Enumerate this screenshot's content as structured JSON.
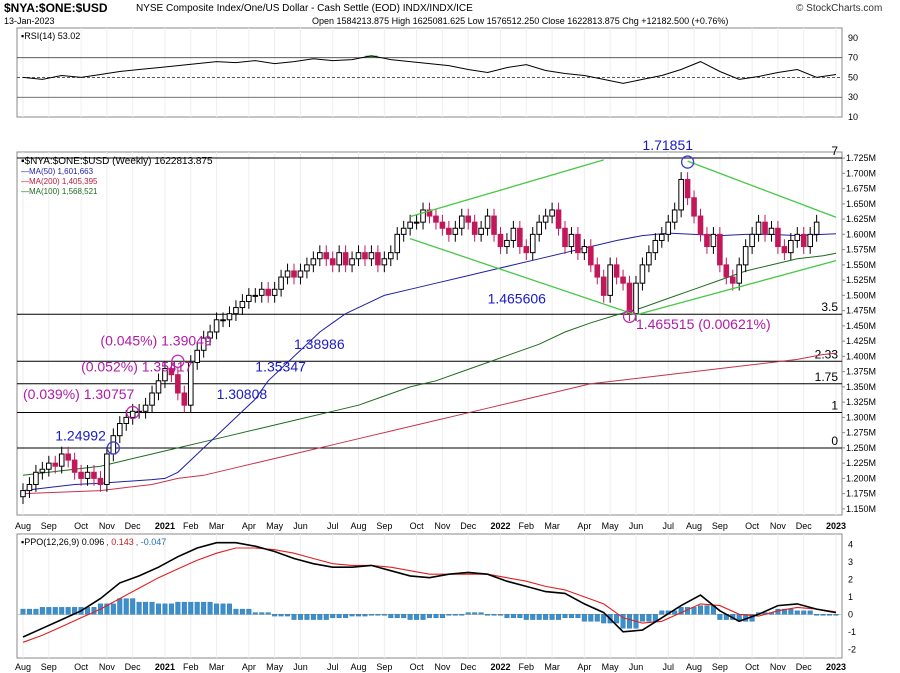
{
  "header": {
    "symbol": "$NYA:$ONE:$USD",
    "description": "NYSE Composite Index/One/US Dollar - Cash Settle (EOD) INDX/INDX/ICE",
    "watermark": "© StockCharts.com",
    "date": "13-Jan-2023",
    "ohlc": "Open 1584213.875  High 1625081.625  Low 1576512.250  Close 1622813.875  Chg +12182.500 (+0.76%)"
  },
  "chart_data": [
    {
      "type": "line",
      "panel": "rsi",
      "legend": "RSI(14) 53.02",
      "ylim": [
        10,
        100
      ],
      "ticks": [
        "90",
        "70",
        "50",
        "30",
        "10"
      ],
      "reference_lines": [
        70,
        50,
        30
      ],
      "x": [
        0,
        3,
        6,
        9,
        12,
        15,
        18,
        21,
        24,
        27,
        30,
        33,
        36,
        39,
        42,
        45,
        48,
        51,
        54,
        57,
        60,
        63,
        66,
        69,
        72,
        75,
        78,
        81,
        84,
        87,
        90,
        93,
        96,
        99,
        102,
        105,
        108,
        111,
        114,
        117,
        120,
        123,
        126
      ],
      "values": [
        50,
        48,
        52,
        50,
        53,
        56,
        58,
        60,
        62,
        64,
        66,
        65,
        67,
        64,
        66,
        69,
        67,
        68,
        72,
        68,
        66,
        64,
        62,
        58,
        55,
        60,
        63,
        57,
        54,
        52,
        48,
        44,
        48,
        52,
        58,
        66,
        56,
        48,
        51,
        55,
        58,
        50,
        53
      ],
      "colors": {
        "line": "#000000",
        "overbought_fill": "#3a8f3a",
        "oversold_fill": "#3a8f3a"
      }
    },
    {
      "type": "candlestick",
      "panel": "price",
      "legend": [
        {
          "text": "$NYA:$ONE:$USD (Weekly) 1622813.875",
          "color": "#000000"
        },
        {
          "text": "MA(50) 1,601,663",
          "color": "#1f1fa6"
        },
        {
          "text": "MA(200) 1,405,395",
          "color": "#b71c3c"
        },
        {
          "text": "MA(100) 1,568,521",
          "color": "#1f6b1f"
        }
      ],
      "y_unit_note": "millions (axis ticks printed as 1.725M etc.)",
      "ylim": [
        1.14,
        1.735
      ],
      "y_ticks": [
        "1.725M",
        "1.700M",
        "1.675M",
        "1.650M",
        "1.625M",
        "1.600M",
        "1.575M",
        "1.550M",
        "1.525M",
        "1.500M",
        "1.475M",
        "1.450M",
        "1.425M",
        "1.400M",
        "1.375M",
        "1.350M",
        "1.325M",
        "1.300M",
        "1.275M",
        "1.250M",
        "1.225M",
        "1.200M",
        "1.175M",
        "1.150M"
      ],
      "x_ticks": [
        {
          "label": "Aug",
          "x": 0
        },
        {
          "label": "Sep",
          "x": 4
        },
        {
          "label": "Oct",
          "x": 9
        },
        {
          "label": "Nov",
          "x": 13
        },
        {
          "label": "Dec",
          "x": 17
        },
        {
          "label": "2021",
          "x": 22,
          "bold": true
        },
        {
          "label": "Feb",
          "x": 26
        },
        {
          "label": "Mar",
          "x": 30
        },
        {
          "label": "Apr",
          "x": 35
        },
        {
          "label": "May",
          "x": 39
        },
        {
          "label": "Jun",
          "x": 43
        },
        {
          "label": "Jul",
          "x": 48
        },
        {
          "label": "Aug",
          "x": 52
        },
        {
          "label": "Sep",
          "x": 56
        },
        {
          "label": "Oct",
          "x": 61
        },
        {
          "label": "Nov",
          "x": 65
        },
        {
          "label": "Dec",
          "x": 69
        },
        {
          "label": "2022",
          "x": 74,
          "bold": true
        },
        {
          "label": "Feb",
          "x": 78
        },
        {
          "label": "Mar",
          "x": 82
        },
        {
          "label": "Apr",
          "x": 87
        },
        {
          "label": "May",
          "x": 91
        },
        {
          "label": "Jun",
          "x": 95
        },
        {
          "label": "Jul",
          "x": 100
        },
        {
          "label": "Aug",
          "x": 104
        },
        {
          "label": "Sep",
          "x": 108
        },
        {
          "label": "Oct",
          "x": 113
        },
        {
          "label": "Nov",
          "x": 117
        },
        {
          "label": "Dec",
          "x": 121
        },
        {
          "label": "2023",
          "x": 126,
          "bold": true
        }
      ],
      "close": [
        1.18,
        1.19,
        1.21,
        1.215,
        1.225,
        1.22,
        1.24,
        1.23,
        1.21,
        1.2,
        1.21,
        1.2,
        1.19,
        1.24,
        1.27,
        1.29,
        1.3,
        1.31,
        1.31,
        1.32,
        1.34,
        1.36,
        1.38,
        1.37,
        1.34,
        1.32,
        1.39,
        1.41,
        1.43,
        1.44,
        1.46,
        1.46,
        1.47,
        1.48,
        1.49,
        1.5,
        1.5,
        1.51,
        1.5,
        1.51,
        1.53,
        1.54,
        1.53,
        1.54,
        1.55,
        1.56,
        1.57,
        1.56,
        1.55,
        1.57,
        1.55,
        1.56,
        1.57,
        1.56,
        1.57,
        1.55,
        1.56,
        1.57,
        1.6,
        1.61,
        1.62,
        1.62,
        1.64,
        1.63,
        1.62,
        1.61,
        1.6,
        1.61,
        1.63,
        1.62,
        1.6,
        1.61,
        1.63,
        1.6,
        1.58,
        1.59,
        1.61,
        1.58,
        1.57,
        1.6,
        1.62,
        1.63,
        1.64,
        1.61,
        1.58,
        1.6,
        1.57,
        1.58,
        1.55,
        1.53,
        1.5,
        1.55,
        1.53,
        1.52,
        1.47,
        1.52,
        1.55,
        1.57,
        1.59,
        1.6,
        1.62,
        1.64,
        1.69,
        1.66,
        1.63,
        1.6,
        1.58,
        1.6,
        1.55,
        1.53,
        1.52,
        1.55,
        1.58,
        1.6,
        1.62,
        1.6,
        1.61,
        1.58,
        1.57,
        1.59,
        1.6,
        1.58,
        1.6,
        1.62
      ],
      "ma50": [
        1.18,
        1.185,
        1.19,
        1.192,
        1.195,
        1.198,
        1.2,
        1.21,
        1.23,
        1.25,
        1.27,
        1.29,
        1.31,
        1.33,
        1.36,
        1.38,
        1.4,
        1.42,
        1.44,
        1.455,
        1.47,
        1.48,
        1.5,
        1.51,
        1.52,
        1.53,
        1.54,
        1.55,
        1.56,
        1.57,
        1.58,
        1.59,
        1.598,
        1.602,
        1.6,
        1.598,
        1.6,
        1.6,
        1.598,
        1.601
      ],
      "ma50_x": [
        0,
        4,
        8,
        12,
        16,
        20,
        22,
        24,
        26,
        28,
        30,
        32,
        34,
        36,
        38,
        40,
        42,
        44,
        46,
        48,
        50,
        52,
        56,
        60,
        64,
        68,
        72,
        76,
        80,
        84,
        88,
        92,
        96,
        100,
        104,
        108,
        112,
        116,
        120,
        126
      ],
      "ma100": [
        1.205,
        1.21,
        1.215,
        1.22,
        1.23,
        1.24,
        1.25,
        1.26,
        1.27,
        1.28,
        1.29,
        1.3,
        1.31,
        1.32,
        1.335,
        1.35,
        1.36,
        1.375,
        1.39,
        1.405,
        1.42,
        1.44,
        1.455,
        1.468,
        1.48,
        1.495,
        1.51,
        1.525,
        1.54,
        1.55,
        1.56,
        1.565,
        1.569
      ],
      "ma100_x": [
        0,
        4,
        8,
        12,
        16,
        20,
        24,
        28,
        32,
        36,
        40,
        44,
        48,
        52,
        56,
        60,
        64,
        68,
        72,
        76,
        80,
        84,
        88,
        92,
        96,
        100,
        104,
        108,
        112,
        116,
        120,
        124,
        126
      ],
      "ma200": [
        1.175,
        1.18,
        1.185,
        1.19,
        1.2,
        1.205,
        1.215,
        1.225,
        1.235,
        1.245,
        1.255,
        1.265,
        1.275,
        1.285,
        1.295,
        1.305,
        1.315,
        1.325,
        1.335,
        1.345,
        1.355,
        1.365,
        1.375,
        1.385,
        1.395,
        1.403,
        1.405
      ],
      "ma200_x": [
        0,
        12,
        16,
        20,
        24,
        28,
        32,
        36,
        40,
        44,
        48,
        52,
        56,
        60,
        64,
        68,
        72,
        76,
        80,
        84,
        88,
        96,
        104,
        112,
        120,
        124,
        126
      ],
      "horizontal_lines": [
        {
          "value": 1.7251,
          "label": "7"
        },
        {
          "value": 1.4691,
          "label": "3.5"
        },
        {
          "value": 1.392,
          "label": "2.33"
        },
        {
          "value": 1.3551,
          "label": "1.75"
        },
        {
          "value": 1.3081,
          "label": "1"
        },
        {
          "value": 1.2499,
          "label": "0"
        }
      ],
      "trendlines": [
        {
          "from": [
            60,
            1.629
          ],
          "to": [
            90,
            1.722
          ]
        },
        {
          "from": [
            60,
            1.593
          ],
          "to": [
            95,
            1.468
          ]
        },
        {
          "from": [
            95,
            1.468
          ],
          "to": [
            126,
            1.557
          ]
        },
        {
          "from": [
            103,
            1.72
          ],
          "to": [
            126,
            1.628
          ]
        }
      ],
      "annotations": [
        {
          "text": "1.71851",
          "x": 96,
          "y": 1.738,
          "color": "#1a1ac8"
        },
        {
          "text": "1.465606",
          "x": 72,
          "y": 1.487,
          "color": "#1a1ac8"
        },
        {
          "text": "1.465515  (0.00621%)",
          "x": 95,
          "y": 1.445,
          "color": "#b01aa8"
        },
        {
          "text": "(0.045%)  1.39049",
          "x": 12,
          "y": 1.418,
          "color": "#b01aa8"
        },
        {
          "text": "1.38986",
          "x": 42,
          "y": 1.412,
          "color": "#1a1ac8"
        },
        {
          "text": "(0.052%)  1.35417",
          "x": 9,
          "y": 1.375,
          "color": "#b01aa8"
        },
        {
          "text": "1.35347",
          "x": 36,
          "y": 1.375,
          "color": "#1a1ac8"
        },
        {
          "text": "(0.039%)  1.30757",
          "x": 0,
          "y": 1.33,
          "color": "#b01aa8"
        },
        {
          "text": "1.30808",
          "x": 30,
          "y": 1.33,
          "color": "#1a1ac8"
        },
        {
          "text": "1.24992",
          "x": 5,
          "y": 1.262,
          "color": "#1a1ac8"
        }
      ],
      "circles": [
        {
          "x": 14,
          "y": 1.2499,
          "color": "#3a3ad6"
        },
        {
          "x": 17,
          "y": 1.3081,
          "color": "#c02ab0"
        },
        {
          "x": 24,
          "y": 1.392,
          "color": "#c02ab0"
        },
        {
          "x": 94,
          "y": 1.4656,
          "color": "#c02ab0"
        },
        {
          "x": 103,
          "y": 1.7185,
          "color": "#3a3ad6"
        }
      ],
      "colors": {
        "up": "#000000",
        "down": "#c2185b",
        "trend": "#46c846"
      }
    },
    {
      "type": "bar",
      "panel": "ppo",
      "legend": [
        {
          "text": "PPO(12,26,9) 0.096",
          "color": "#000000"
        },
        {
          "text": ", 0.143",
          "color": "#d11a1a"
        },
        {
          "text": ", -0.047",
          "color": "#1f6fb2"
        }
      ],
      "ylim": [
        -2.5,
        4.6
      ],
      "ticks": [
        "4",
        "3",
        "2",
        "1",
        "0",
        "-1",
        "-2"
      ],
      "ppo_x": [
        0,
        3,
        6,
        9,
        12,
        15,
        18,
        21,
        24,
        27,
        30,
        33,
        36,
        39,
        42,
        45,
        48,
        51,
        54,
        57,
        60,
        63,
        66,
        69,
        72,
        75,
        78,
        81,
        84,
        87,
        90,
        93,
        96,
        99,
        102,
        105,
        108,
        111,
        114,
        117,
        120,
        123,
        126
      ],
      "ppo": [
        -1.3,
        -0.8,
        -0.3,
        0.2,
        0.9,
        1.8,
        2.2,
        2.7,
        3.3,
        3.8,
        4.1,
        4.1,
        3.9,
        3.6,
        3.2,
        2.9,
        2.7,
        2.7,
        2.8,
        2.5,
        2.2,
        2.1,
        2.3,
        2.4,
        2.3,
        1.9,
        1.6,
        1.3,
        1.2,
        0.6,
        0.1,
        -1.0,
        -0.9,
        -0.2,
        0.5,
        1.1,
        0.2,
        -0.4,
        0.0,
        0.5,
        0.6,
        0.3,
        0.1
      ],
      "signal": [
        -1.6,
        -1.2,
        -0.7,
        -0.2,
        0.3,
        0.9,
        1.5,
        2.1,
        2.6,
        3.1,
        3.5,
        3.8,
        3.8,
        3.7,
        3.5,
        3.2,
        2.9,
        2.8,
        2.8,
        2.7,
        2.5,
        2.3,
        2.3,
        2.3,
        2.3,
        2.1,
        1.9,
        1.6,
        1.4,
        1.0,
        0.6,
        -0.2,
        -0.5,
        -0.4,
        0.1,
        0.6,
        0.5,
        0.0,
        -0.1,
        0.2,
        0.4,
        0.3,
        0.14
      ],
      "histogram": [
        0.3,
        0.4,
        0.4,
        0.4,
        0.6,
        0.9,
        0.7,
        0.6,
        0.7,
        0.7,
        0.6,
        0.3,
        0.1,
        -0.1,
        -0.3,
        -0.3,
        -0.2,
        -0.1,
        0.0,
        -0.2,
        -0.3,
        -0.2,
        0.0,
        0.1,
        0.0,
        -0.2,
        -0.3,
        -0.3,
        -0.2,
        -0.4,
        -0.5,
        -0.8,
        -0.4,
        0.2,
        0.4,
        0.5,
        -0.3,
        -0.4,
        0.1,
        0.3,
        0.2,
        0.0,
        -0.05
      ],
      "x_ticks_same_as_price": true,
      "colors": {
        "ppo": "#000000",
        "signal": "#e02020",
        "histogram": "#3a8fcf"
      }
    }
  ]
}
